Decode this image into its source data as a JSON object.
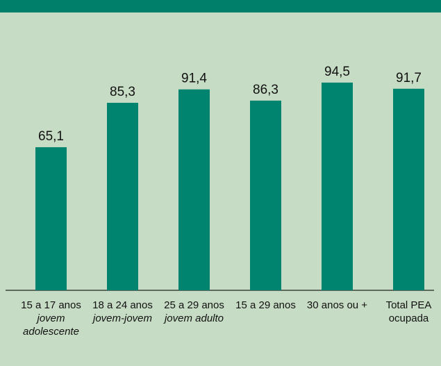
{
  "chart_data": {
    "type": "bar",
    "categories": [
      "15 a 17 anos",
      "18 a 24 anos",
      "25 a 29 anos",
      "15 a 29 anos",
      "30 anos ou +",
      "Total PEA ocupada"
    ],
    "category_sublabels": [
      "jovem adolescente",
      "jovem-jovem",
      "jovem adulto",
      null,
      null,
      null
    ],
    "values": [
      65.1,
      85.3,
      91.4,
      86.3,
      94.5,
      91.7
    ],
    "value_labels": [
      "65,1",
      "85,3",
      "91,4",
      "86,3",
      "94,5",
      "91,7"
    ],
    "color": "#00846f"
  }
}
